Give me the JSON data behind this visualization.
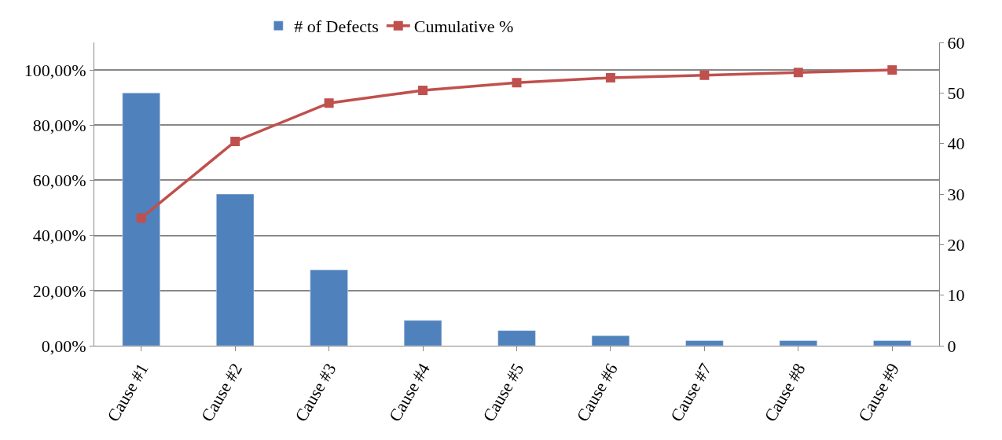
{
  "chart_data": {
    "type": "bar",
    "categories": [
      "Cause #1",
      "Cause #2",
      "Cause #3",
      "Cause #4",
      "Cause #5",
      "Cause #6",
      "Cause #7",
      "Cause #8",
      "Cause #9"
    ],
    "series": [
      {
        "name": "# of Defects",
        "axis": "y2",
        "color": "#4f81bd",
        "values": [
          50,
          30,
          15,
          5,
          3,
          2,
          1,
          1,
          1
        ]
      },
      {
        "name": "Cumulative %",
        "type": "line",
        "color": "#c0504d",
        "marker": "square",
        "values": [
          46.3,
          74.1,
          88.0,
          92.6,
          95.4,
          97.2,
          98.1,
          99.1,
          100
        ]
      }
    ],
    "ylim": [
      0,
      110
    ],
    "yticks": [
      {
        "value": 0,
        "label": "0,00%"
      },
      {
        "value": 20,
        "label": "20,00%"
      },
      {
        "value": 40,
        "label": "40,00%"
      },
      {
        "value": 60,
        "label": "60,00%"
      },
      {
        "value": 80,
        "label": "80,00%"
      },
      {
        "value": 100,
        "label": "100,00%"
      }
    ],
    "y2lim": [
      0,
      60
    ],
    "y2ticks": [
      0,
      10,
      20,
      30,
      40,
      50,
      60
    ],
    "grid": "y",
    "legend": "top"
  }
}
